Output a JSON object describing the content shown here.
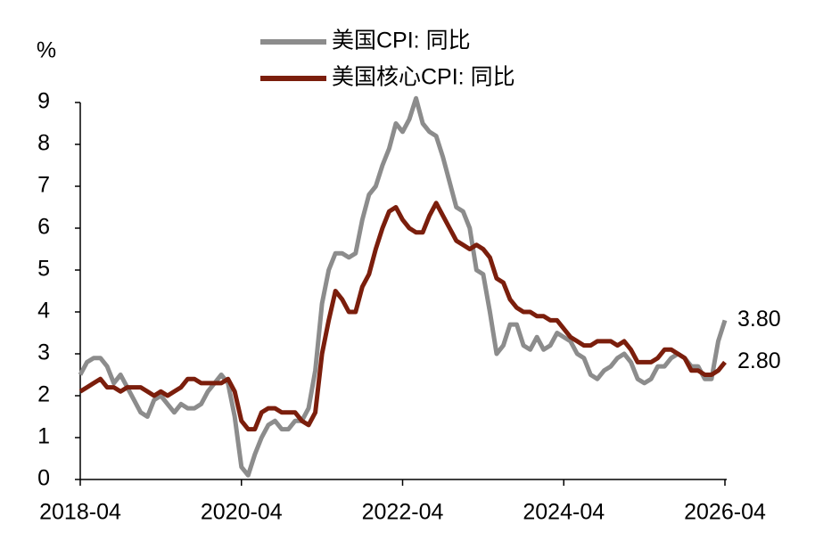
{
  "chart_data": {
    "type": "line",
    "y_label": "%",
    "x": [
      "2018-04",
      "2018-05",
      "2018-06",
      "2018-07",
      "2018-08",
      "2018-09",
      "2018-10",
      "2018-11",
      "2018-12",
      "2019-01",
      "2019-02",
      "2019-03",
      "2019-04",
      "2019-05",
      "2019-06",
      "2019-07",
      "2019-08",
      "2019-09",
      "2019-10",
      "2019-11",
      "2019-12",
      "2020-01",
      "2020-02",
      "2020-03",
      "2020-04",
      "2020-05",
      "2020-06",
      "2020-07",
      "2020-08",
      "2020-09",
      "2020-10",
      "2020-11",
      "2020-12",
      "2021-01",
      "2021-02",
      "2021-03",
      "2021-04",
      "2021-05",
      "2021-06",
      "2021-07",
      "2021-08",
      "2021-09",
      "2021-10",
      "2021-11",
      "2021-12",
      "2022-01",
      "2022-02",
      "2022-03",
      "2022-04",
      "2022-05",
      "2022-06",
      "2022-07",
      "2022-08",
      "2022-09",
      "2022-10",
      "2022-11",
      "2022-12",
      "2023-01",
      "2023-02",
      "2023-03",
      "2023-04",
      "2023-05",
      "2023-06",
      "2023-07",
      "2023-08",
      "2023-09",
      "2023-10",
      "2023-11",
      "2023-12",
      "2024-01",
      "2024-02",
      "2024-03",
      "2024-04",
      "2024-05",
      "2024-06",
      "2024-07",
      "2024-08",
      "2024-09",
      "2024-10",
      "2024-11",
      "2024-12",
      "2025-01",
      "2025-02",
      "2025-03",
      "2025-04",
      "2025-05",
      "2025-06",
      "2025-07",
      "2025-08",
      "2025-09",
      "2025-10",
      "2025-11",
      "2025-12",
      "2026-01",
      "2026-02",
      "2026-03",
      "2026-04"
    ],
    "xticks": [
      "2018-04",
      "2020-04",
      "2022-04",
      "2024-04",
      "2026-04"
    ],
    "series": [
      {
        "name": "美国CPI: 同比",
        "color": "#8c8c8c",
        "values": [
          2.5,
          2.8,
          2.9,
          2.9,
          2.7,
          2.3,
          2.5,
          2.2,
          1.9,
          1.6,
          1.5,
          1.9,
          2.0,
          1.8,
          1.6,
          1.8,
          1.7,
          1.7,
          1.8,
          2.1,
          2.3,
          2.5,
          2.3,
          1.5,
          0.3,
          0.1,
          0.6,
          1.0,
          1.3,
          1.4,
          1.2,
          1.2,
          1.4,
          1.4,
          1.7,
          2.6,
          4.2,
          5.0,
          5.4,
          5.4,
          5.3,
          5.4,
          6.2,
          6.8,
          7.0,
          7.5,
          7.9,
          8.5,
          8.3,
          8.6,
          9.1,
          8.5,
          8.3,
          8.2,
          7.7,
          7.1,
          6.5,
          6.4,
          6.0,
          5.0,
          4.9,
          4.0,
          3.0,
          3.2,
          3.7,
          3.7,
          3.2,
          3.1,
          3.4,
          3.1,
          3.2,
          3.5,
          3.4,
          3.3,
          3.0,
          2.9,
          2.5,
          2.4,
          2.6,
          2.7,
          2.9,
          3.0,
          2.8,
          2.4,
          2.3,
          2.4,
          2.7,
          2.7,
          2.9,
          3.0,
          2.9,
          2.7,
          2.7,
          2.4,
          2.4,
          3.3,
          3.8
        ],
        "value_labels": [
          null,
          null,
          null,
          null,
          null,
          null,
          null,
          null,
          null,
          null,
          null,
          null,
          null,
          null,
          null,
          null,
          null,
          null,
          null,
          null,
          null,
          null,
          null,
          null,
          null,
          null,
          null,
          null,
          null,
          null,
          null,
          null,
          null,
          null,
          null,
          null,
          null,
          null,
          null,
          null,
          null,
          null,
          null,
          null,
          null,
          null,
          null,
          null,
          null,
          null,
          null,
          null,
          null,
          null,
          null,
          null,
          null,
          null,
          null,
          null,
          null,
          null,
          null,
          null,
          null,
          null,
          null,
          null,
          null,
          null,
          null,
          null,
          null,
          null,
          null,
          null,
          null,
          null,
          null,
          null,
          null,
          null,
          null,
          null,
          null,
          null,
          null,
          null,
          null,
          null,
          null,
          null,
          null,
          null,
          null,
          null,
          "3.80"
        ]
      },
      {
        "name": "美国核心CPI: 同比",
        "color": "#7b1e0c",
        "values": [
          2.1,
          2.2,
          2.3,
          2.4,
          2.2,
          2.2,
          2.1,
          2.2,
          2.2,
          2.2,
          2.1,
          2.0,
          2.1,
          2.0,
          2.1,
          2.2,
          2.4,
          2.4,
          2.3,
          2.3,
          2.3,
          2.3,
          2.4,
          2.1,
          1.4,
          1.2,
          1.2,
          1.6,
          1.7,
          1.7,
          1.6,
          1.6,
          1.6,
          1.4,
          1.3,
          1.6,
          3.0,
          3.8,
          4.5,
          4.3,
          4.0,
          4.0,
          4.6,
          4.9,
          5.5,
          6.0,
          6.4,
          6.5,
          6.2,
          6.0,
          5.9,
          5.9,
          6.3,
          6.6,
          6.3,
          6.0,
          5.7,
          5.6,
          5.5,
          5.6,
          5.5,
          5.3,
          4.8,
          4.7,
          4.3,
          4.1,
          4.0,
          4.0,
          3.9,
          3.9,
          3.8,
          3.8,
          3.6,
          3.4,
          3.3,
          3.2,
          3.2,
          3.3,
          3.3,
          3.3,
          3.2,
          3.3,
          3.1,
          2.8,
          2.8,
          2.8,
          2.9,
          3.1,
          3.1,
          3.0,
          2.9,
          2.6,
          2.6,
          2.5,
          2.5,
          2.6,
          2.8
        ],
        "value_labels": [
          null,
          null,
          null,
          null,
          null,
          null,
          null,
          null,
          null,
          null,
          null,
          null,
          null,
          null,
          null,
          null,
          null,
          null,
          null,
          null,
          null,
          null,
          null,
          null,
          null,
          null,
          null,
          null,
          null,
          null,
          null,
          null,
          null,
          null,
          null,
          null,
          null,
          null,
          null,
          null,
          null,
          null,
          null,
          null,
          null,
          null,
          null,
          null,
          null,
          null,
          null,
          null,
          null,
          null,
          null,
          null,
          null,
          null,
          null,
          null,
          null,
          null,
          null,
          null,
          null,
          null,
          null,
          null,
          null,
          null,
          null,
          null,
          null,
          null,
          null,
          null,
          null,
          null,
          null,
          null,
          null,
          null,
          null,
          null,
          null,
          null,
          null,
          null,
          null,
          null,
          null,
          null,
          null,
          null,
          null,
          null,
          "2.80"
        ]
      }
    ],
    "ylim": [
      0,
      9
    ],
    "yticks": [
      0,
      1,
      2,
      3,
      4,
      5,
      6,
      7,
      8,
      9
    ],
    "grid": false
  }
}
